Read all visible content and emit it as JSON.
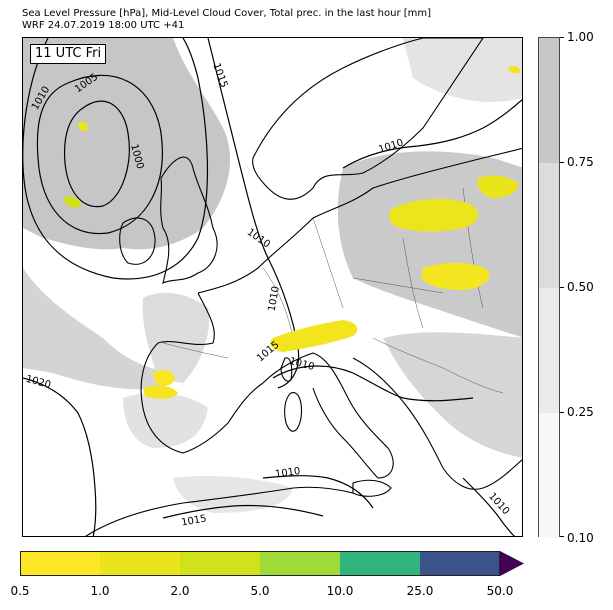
{
  "header": {
    "title_line1": "Sea Level Pressure [hPa], Mid-Level Cloud Cover, Total prec. in the last hour [mm]",
    "title_line2": "WRF 24.07.2019 18:00 UTC +41"
  },
  "map": {
    "time_label": "11 UTC Fri",
    "isobar_labels": [
      "1010",
      "1005",
      "1000",
      "1015",
      "1010",
      "1010",
      "1010",
      "1015",
      "1010",
      "1020",
      "1010",
      "1015",
      "1010"
    ],
    "colors": {
      "cloud_light": "#ededed",
      "cloud_mid": "#d9d9d9",
      "cloud_dark": "#c6c6c6",
      "coast": "#000000",
      "border": "#555555"
    }
  },
  "cloud_colorbar": {
    "ticks": [
      "1.00",
      "0.75",
      "0.50",
      "0.25",
      "0.10"
    ],
    "colors": [
      "#c8c8c8",
      "#dcdcdc",
      "#ebebeb",
      "#f7f7f7"
    ]
  },
  "precip_colorbar": {
    "ticks": [
      "0.5",
      "1.0",
      "2.0",
      "5.0",
      "10.0",
      "25.0",
      "50.0"
    ],
    "colors": [
      "#fde725",
      "#eae51a",
      "#d1e21b",
      "#a0da39",
      "#2fb47c",
      "#3b528b",
      "#440154"
    ]
  }
}
